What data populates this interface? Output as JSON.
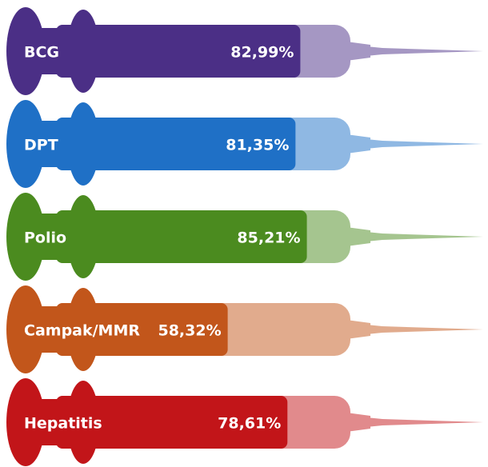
{
  "chart_data": {
    "type": "bar",
    "categories": [
      "BCG",
      "DPT",
      "Polio",
      "Campak/MMR",
      "Hepatitis"
    ],
    "values": [
      82.99,
      81.35,
      85.21,
      58.32,
      78.61
    ],
    "value_labels": [
      "82,99%",
      "81,35%",
      "85,21%",
      "58,32%",
      "78,61%"
    ],
    "colors": [
      "#4b2f86",
      "#1f70c6",
      "#4b8b1f",
      "#c2561b",
      "#c21519"
    ],
    "xlim": [
      0,
      100
    ]
  }
}
